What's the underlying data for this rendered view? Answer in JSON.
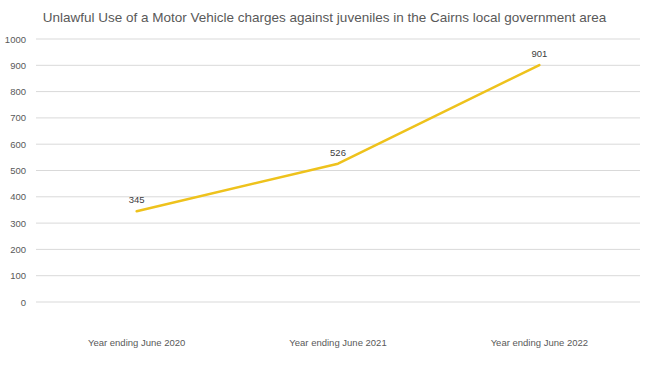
{
  "chart_data": {
    "type": "line",
    "title": "Unlawful Use of a Motor Vehicle charges against juveniles in the Cairns local government area",
    "categories": [
      "Year ending June 2020",
      "Year ending June 2021",
      "Year ending June 2022"
    ],
    "values": [
      345,
      526,
      901
    ],
    "color": "#eec21c",
    "ylim": [
      0,
      1000
    ],
    "yticks": [
      0,
      100,
      200,
      300,
      400,
      500,
      600,
      700,
      800,
      900,
      1000
    ],
    "grid": true,
    "data_labels": true
  }
}
